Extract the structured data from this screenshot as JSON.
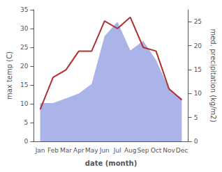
{
  "chart_data": {
    "type": "line",
    "xlabel": "date (month)",
    "ylabel": "max temp (C)",
    "y2label": "med. precipitation (kg/m2)",
    "categories": [
      "Jan",
      "Feb",
      "Mar",
      "Apr",
      "May",
      "Jun",
      "Jul",
      "Aug",
      "Sep",
      "Oct",
      "Nov",
      "Dec"
    ],
    "series": [
      {
        "type": "area",
        "color": "#aab4e8",
        "axis": "y2",
        "values": [
          8,
          8,
          9,
          10,
          12,
          22,
          25,
          19,
          21,
          17,
          11,
          9
        ]
      },
      {
        "type": "line",
        "color": "#b03030",
        "values": [
          8.5,
          17.0,
          19.0,
          24.0,
          24.0,
          32.0,
          30.0,
          33.0,
          25.0,
          24.0,
          14.0,
          11.0
        ]
      }
    ],
    "ylim": [
      0,
      35
    ],
    "yticks": [
      0,
      5,
      10,
      15,
      20,
      25,
      30,
      35
    ],
    "y2lim": [
      0,
      27.5
    ],
    "y2ticks": [
      0,
      5,
      10,
      15,
      20,
      25
    ],
    "grid": false
  }
}
